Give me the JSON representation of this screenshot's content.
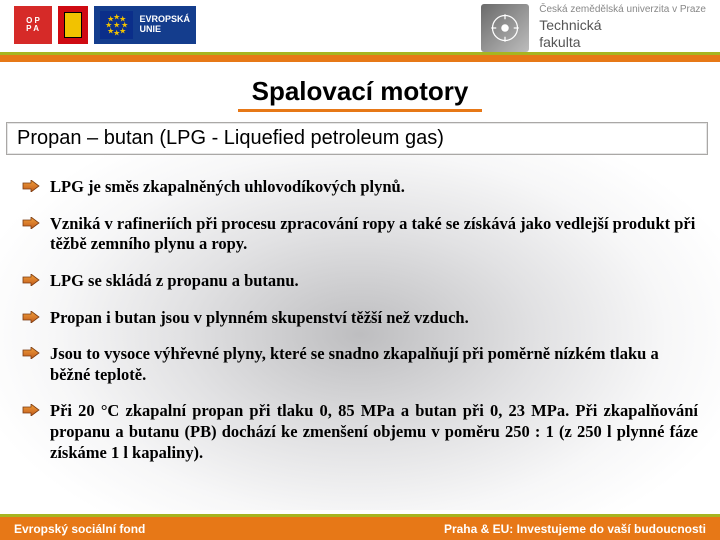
{
  "colors": {
    "accent_orange": "#e77817",
    "accent_green": "#a7b521",
    "eu_blue": "#143d8d",
    "oppa_red": "#d62a28",
    "star_gold": "#f2c200",
    "text_black": "#000000",
    "tf_gray": "#888888"
  },
  "logos": {
    "oppa_label": "O P\nP A",
    "eu_label": "EVROPSKÁ\nUNIE",
    "uni_line1": "Česká zemědělská univerzita v Praze",
    "uni_line2": "Technická",
    "uni_line3": "fakulta"
  },
  "title": "Spalovací motory",
  "subtitle": "Propan – butan (LPG - Liquefied petroleum gas)",
  "bullets": [
    {
      "text": "LPG je směs zkapalněných uhlovodíkových plynů.",
      "justify": false
    },
    {
      "text": "Vzniká v rafineriích při procesu zpracování ropy a také se získává jako vedlejší produkt při těžbě zemního plynu a ropy.",
      "justify": false
    },
    {
      "text": "LPG se skládá z propanu a butanu.",
      "justify": false
    },
    {
      "text": "Propan i butan jsou v plynném skupenství těžší než vzduch.",
      "justify": false
    },
    {
      "text": "Jsou to vysoce výhřevné plyny, které se snadno zkapalňují při poměrně nízkém tlaku a běžné teplotě.",
      "justify": false
    },
    {
      "text": "Při 20 °C zkapalní propan při tlaku 0, 85 MPa a butan při 0, 23 MPa. Při zkapalňování propanu a butanu (PB) dochází ke zmenšení objemu v poměru 250 : 1 (z 250 l plynné fáze získáme 1 l kapaliny).",
      "justify": true
    }
  ],
  "arrow_style": {
    "fill_top": "#f2a03a",
    "fill_bottom": "#c0591c",
    "stroke": "#7a3a10",
    "width": 18,
    "height": 12
  },
  "footer": {
    "left": "Evropský sociální fond",
    "right": "Praha & EU: Investujeme do vaší budoucnosti"
  }
}
